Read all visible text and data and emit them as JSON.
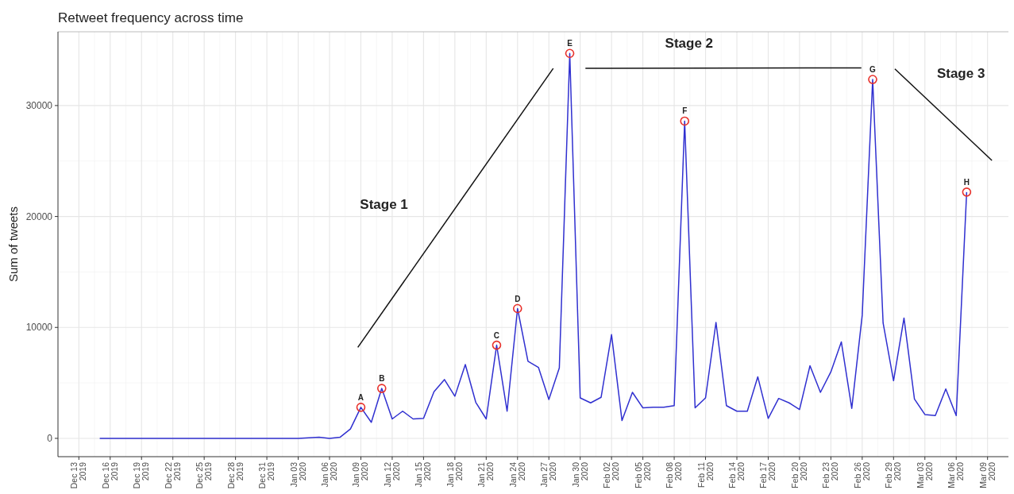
{
  "chart_data": {
    "type": "line",
    "title": "Retweet frequency across time",
    "ylabel": "Sum of tweets",
    "x": [
      "2019-12-15",
      "2019-12-16",
      "2019-12-17",
      "2019-12-18",
      "2019-12-19",
      "2019-12-20",
      "2019-12-21",
      "2019-12-22",
      "2019-12-23",
      "2019-12-24",
      "2019-12-25",
      "2019-12-26",
      "2019-12-27",
      "2019-12-28",
      "2019-12-29",
      "2019-12-30",
      "2019-12-31",
      "2020-01-01",
      "2020-01-02",
      "2020-01-03",
      "2020-01-04",
      "2020-01-05",
      "2020-01-06",
      "2020-01-07",
      "2020-01-08",
      "2020-01-09",
      "2020-01-10",
      "2020-01-11",
      "2020-01-12",
      "2020-01-13",
      "2020-01-14",
      "2020-01-15",
      "2020-01-16",
      "2020-01-17",
      "2020-01-18",
      "2020-01-19",
      "2020-01-20",
      "2020-01-21",
      "2020-01-22",
      "2020-01-23",
      "2020-01-24",
      "2020-01-25",
      "2020-01-26",
      "2020-01-27",
      "2020-01-28",
      "2020-01-29",
      "2020-01-30",
      "2020-01-31",
      "2020-02-01",
      "2020-02-02",
      "2020-02-03",
      "2020-02-04",
      "2020-02-05",
      "2020-02-06",
      "2020-02-07",
      "2020-02-08",
      "2020-02-09",
      "2020-02-10",
      "2020-02-11",
      "2020-02-12",
      "2020-02-13",
      "2020-02-14",
      "2020-02-15",
      "2020-02-16",
      "2020-02-17",
      "2020-02-18",
      "2020-02-19",
      "2020-02-20",
      "2020-02-21",
      "2020-02-22",
      "2020-02-23",
      "2020-02-24",
      "2020-02-25",
      "2020-02-26",
      "2020-02-27",
      "2020-02-28",
      "2020-02-29",
      "2020-03-01",
      "2020-03-02",
      "2020-03-03",
      "2020-03-04",
      "2020-03-05",
      "2020-03-06",
      "2020-03-07"
    ],
    "series": [
      {
        "color": "#3030d0",
        "values": [
          0,
          0,
          0,
          0,
          0,
          0,
          0,
          0,
          0,
          0,
          0,
          0,
          0,
          0,
          0,
          0,
          0,
          0,
          0,
          0,
          50,
          100,
          0,
          100,
          850,
          2800,
          1450,
          4500,
          1750,
          2450,
          1750,
          1800,
          4200,
          5300,
          3800,
          6650,
          3250,
          1750,
          8400,
          2450,
          11700,
          6950,
          6400,
          3500,
          6350,
          34700,
          3650,
          3200,
          3700,
          9350,
          1600,
          4150,
          2750,
          2800,
          2800,
          2950,
          28600,
          2750,
          3650,
          10450,
          2950,
          2450,
          2450,
          5550,
          1800,
          3600,
          3200,
          2600,
          6550,
          4150,
          6000,
          8700,
          2700,
          11100,
          32350,
          10400,
          5200,
          10850,
          3550,
          2150,
          2050,
          4450,
          2050,
          22200
        ]
      },
      {
        "type": "line",
        "color": "#111111",
        "x": [
          "2020-01-08T17:00",
          "2020-01-27T10:00"
        ],
        "values": [
          8200,
          33350
        ]
      },
      {
        "type": "line",
        "color": "#111111",
        "x": [
          "2020-01-30T12:00",
          "2020-02-25T22:00"
        ],
        "values": [
          33350,
          33400
        ]
      },
      {
        "type": "line",
        "color": "#111111",
        "x": [
          "2020-02-29T03:00",
          "2020-03-09T10:00"
        ],
        "values": [
          33300,
          25050
        ]
      }
    ],
    "xlim": [
      "2019-12-11",
      "2020-03-11"
    ],
    "xticks": [
      {
        "value": "2019-12-13",
        "label": "Dec 13\n2019"
      },
      {
        "value": "2019-12-16",
        "label": "Dec 16\n2019"
      },
      {
        "value": "2019-12-19",
        "label": "Dec 19\n2019"
      },
      {
        "value": "2019-12-22",
        "label": "Dec 22\n2019"
      },
      {
        "value": "2019-12-25",
        "label": "Dec 25\n2019"
      },
      {
        "value": "2019-12-28",
        "label": "Dec 28\n2019"
      },
      {
        "value": "2019-12-31",
        "label": "Dec 31\n2019"
      },
      {
        "value": "2020-01-03",
        "label": "Jan 03\n2020"
      },
      {
        "value": "2020-01-06",
        "label": "Jan 06\n2020"
      },
      {
        "value": "2020-01-09",
        "label": "Jan 09\n2020"
      },
      {
        "value": "2020-01-12",
        "label": "Jan 12\n2020"
      },
      {
        "value": "2020-01-15",
        "label": "Jan 15\n2020"
      },
      {
        "value": "2020-01-18",
        "label": "Jan 18\n2020"
      },
      {
        "value": "2020-01-21",
        "label": "Jan 21\n2020"
      },
      {
        "value": "2020-01-24",
        "label": "Jan 24\n2020"
      },
      {
        "value": "2020-01-27",
        "label": "Jan 27\n2020"
      },
      {
        "value": "2020-01-30",
        "label": "Jan 30\n2020"
      },
      {
        "value": "2020-02-02",
        "label": "Feb 02\n2020"
      },
      {
        "value": "2020-02-05",
        "label": "Feb 05\n2020"
      },
      {
        "value": "2020-02-08",
        "label": "Feb 08\n2020"
      },
      {
        "value": "2020-02-11",
        "label": "Feb 11\n2020"
      },
      {
        "value": "2020-02-14",
        "label": "Feb 14\n2020"
      },
      {
        "value": "2020-02-17",
        "label": "Feb 17\n2020"
      },
      {
        "value": "2020-02-20",
        "label": "Feb 20\n2020"
      },
      {
        "value": "2020-02-23",
        "label": "Feb 23\n2020"
      },
      {
        "value": "2020-02-26",
        "label": "Feb 26\n2020"
      },
      {
        "value": "2020-02-29",
        "label": "Feb 29\n2020"
      },
      {
        "value": "2020-03-03",
        "label": "Mar 03\n2020"
      },
      {
        "value": "2020-03-06",
        "label": "Mar 06\n2020"
      },
      {
        "value": "2020-03-09",
        "label": "Mar 09\n2020"
      }
    ],
    "ylim": [
      -1650,
      36650
    ],
    "yticks": [
      0,
      10000,
      20000,
      30000
    ],
    "grid": true,
    "marker": "none",
    "line_style": "solid",
    "annotations": [
      {
        "text": "A",
        "x": "2020-01-09",
        "y": 2800
      },
      {
        "text": "B",
        "x": "2020-01-11",
        "y": 4500
      },
      {
        "text": "C",
        "x": "2020-01-22",
        "y": 8400
      },
      {
        "text": "D",
        "x": "2020-01-24",
        "y": 11700
      },
      {
        "text": "E",
        "x": "2020-01-29",
        "y": 34700
      },
      {
        "text": "F",
        "x": "2020-02-09",
        "y": 28600
      },
      {
        "text": "G",
        "x": "2020-02-27",
        "y": 32350
      },
      {
        "text": "H",
        "x": "2020-03-07",
        "y": 22200
      },
      "Stage 1",
      "Stage 2",
      "Stage 3"
    ]
  }
}
